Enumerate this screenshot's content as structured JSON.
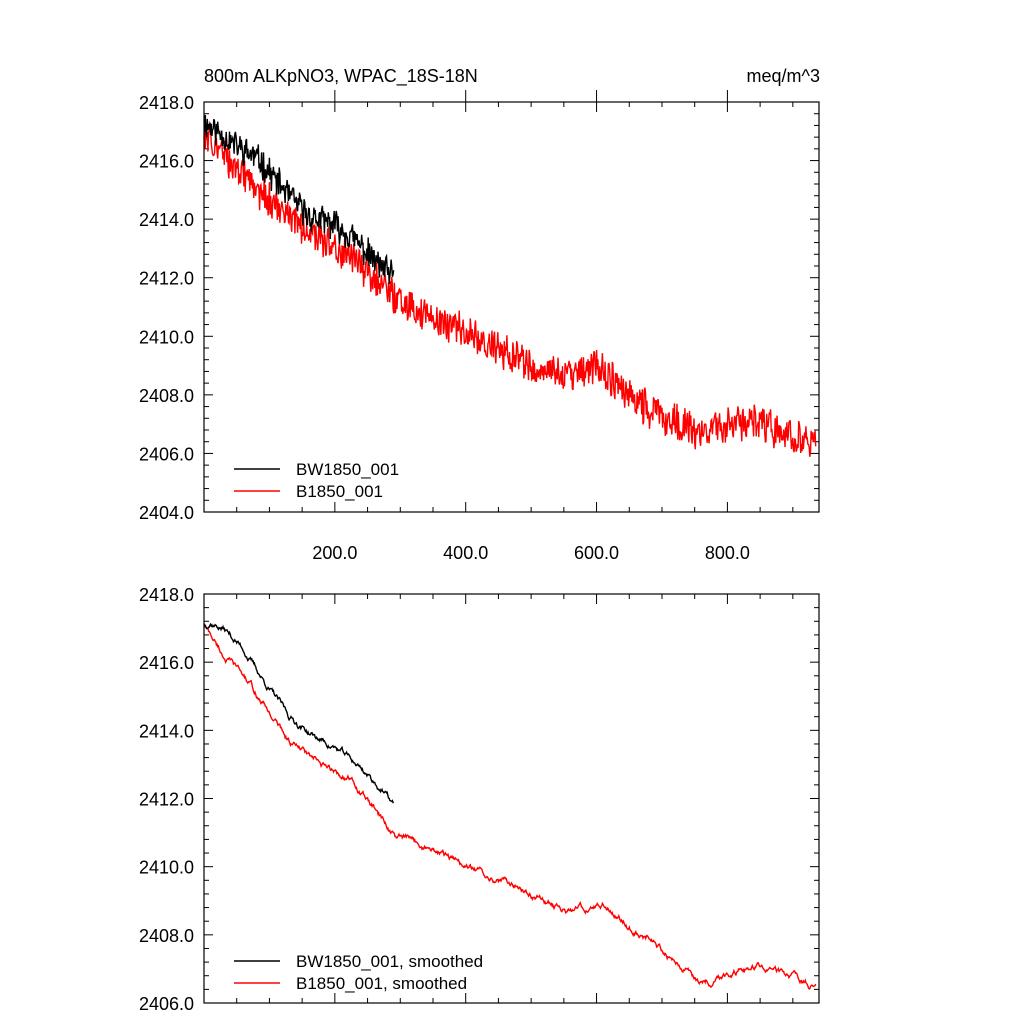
{
  "chart_data": [
    {
      "type": "line",
      "title_left": "800m ALKpNO3, WPAC_18S-18N",
      "title_right": "meq/m^3",
      "xlabel": "",
      "ylabel": "",
      "xlim": [
        0,
        940
      ],
      "ylim": [
        2404.0,
        2418.0
      ],
      "x_ticks": [
        "200.0",
        "400.0",
        "600.0",
        "800.0"
      ],
      "y_ticks": [
        "2404.0",
        "2406.0",
        "2408.0",
        "2410.0",
        "2412.0",
        "2414.0",
        "2416.0",
        "2418.0"
      ],
      "legend_position": "bottom-left",
      "series": [
        {
          "name": "BW1850_001",
          "color": "#000000",
          "noise": 0.45,
          "points": [
            [
              0,
              2417.3
            ],
            [
              20,
              2417.0
            ],
            [
              50,
              2416.5
            ],
            [
              80,
              2416.1
            ],
            [
              100,
              2415.6
            ],
            [
              130,
              2414.8
            ],
            [
              160,
              2414.1
            ],
            [
              200,
              2413.8
            ],
            [
              230,
              2413.3
            ],
            [
              260,
              2412.6
            ],
            [
              290,
              2412.0
            ]
          ]
        },
        {
          "name": "B1850_001",
          "color": "#ff0000",
          "noise": 0.55,
          "points": [
            [
              0,
              2417.0
            ],
            [
              30,
              2416.2
            ],
            [
              60,
              2415.5
            ],
            [
              100,
              2414.6
            ],
            [
              150,
              2413.7
            ],
            [
              200,
              2413.0
            ],
            [
              250,
              2412.2
            ],
            [
              290,
              2411.3
            ],
            [
              330,
              2410.8
            ],
            [
              400,
              2410.1
            ],
            [
              450,
              2409.6
            ],
            [
              520,
              2408.7
            ],
            [
              570,
              2408.7
            ],
            [
              600,
              2409.0
            ],
            [
              630,
              2408.4
            ],
            [
              680,
              2407.5
            ],
            [
              730,
              2407.0
            ],
            [
              760,
              2406.6
            ],
            [
              800,
              2407.0
            ],
            [
              850,
              2407.0
            ],
            [
              900,
              2406.6
            ],
            [
              935,
              2406.3
            ]
          ]
        }
      ]
    },
    {
      "type": "line",
      "xlabel": "",
      "ylabel": "",
      "xlim": [
        0,
        940
      ],
      "ylim": [
        2406.0,
        2418.0
      ],
      "x_ticks": [],
      "y_ticks": [
        "2406.0",
        "2408.0",
        "2410.0",
        "2412.0",
        "2414.0",
        "2416.0",
        "2418.0"
      ],
      "legend_position": "bottom-left",
      "series": [
        {
          "name": "BW1850_001, smoothed",
          "color": "#000000",
          "noise": 0.12,
          "points": [
            [
              0,
              2417.1
            ],
            [
              10,
              2417.2
            ],
            [
              30,
              2417.0
            ],
            [
              60,
              2416.4
            ],
            [
              90,
              2415.5
            ],
            [
              130,
              2414.4
            ],
            [
              170,
              2413.8
            ],
            [
              200,
              2413.5
            ],
            [
              240,
              2412.9
            ],
            [
              270,
              2412.3
            ],
            [
              290,
              2411.8
            ]
          ]
        },
        {
          "name": "B1850_001, smoothed",
          "color": "#ff0000",
          "noise": 0.12,
          "points": [
            [
              0,
              2417.1
            ],
            [
              30,
              2416.2
            ],
            [
              60,
              2415.6
            ],
            [
              90,
              2414.8
            ],
            [
              130,
              2413.7
            ],
            [
              180,
              2412.9
            ],
            [
              220,
              2412.6
            ],
            [
              260,
              2411.7
            ],
            [
              290,
              2410.9
            ],
            [
              350,
              2410.5
            ],
            [
              400,
              2410.0
            ],
            [
              460,
              2409.6
            ],
            [
              500,
              2409.2
            ],
            [
              550,
              2408.7
            ],
            [
              590,
              2408.8
            ],
            [
              610,
              2408.9
            ],
            [
              650,
              2408.3
            ],
            [
              700,
              2407.6
            ],
            [
              760,
              2406.6
            ],
            [
              800,
              2406.9
            ],
            [
              850,
              2407.1
            ],
            [
              900,
              2406.7
            ],
            [
              935,
              2406.5
            ]
          ]
        }
      ]
    }
  ]
}
